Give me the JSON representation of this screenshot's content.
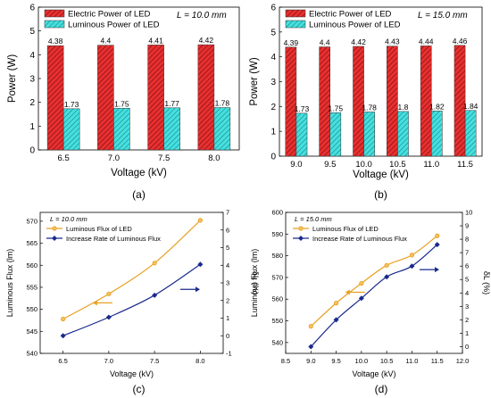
{
  "chart_data": [
    {
      "type": "bar",
      "panel_label": "(a)",
      "annotation": "L = 10.0 mm",
      "xlabel": "Voltage (kV)",
      "ylabel": "Power (W)",
      "ylim": [
        0,
        6
      ],
      "yticks": [
        "0",
        "1",
        "2",
        "3",
        "4",
        "5",
        "6"
      ],
      "categories": [
        "6.5",
        "7.0",
        "7.5",
        "8.0"
      ],
      "legend_position": "top-left",
      "series": [
        {
          "name": "Electric Power of LED",
          "color": "#e02020",
          "pattern": "hatch-red",
          "values": [
            4.38,
            4.4,
            4.41,
            4.42
          ],
          "labels": [
            "4.38",
            "4.4",
            "4.41",
            "4.42"
          ]
        },
        {
          "name": "Luminous Power of LED",
          "color": "#33d6d6",
          "pattern": "hatch-cyan",
          "values": [
            1.73,
            1.75,
            1.77,
            1.78
          ],
          "labels": [
            "1.73",
            "1.75",
            "1.77",
            "1.78"
          ]
        }
      ]
    },
    {
      "type": "bar",
      "panel_label": "(b)",
      "annotation": "L = 15.0 mm",
      "xlabel": "Voltage (kV)",
      "ylabel": "Power (W)",
      "ylim": [
        0,
        6
      ],
      "yticks": [
        "0",
        "1",
        "2",
        "3",
        "4",
        "5",
        "6"
      ],
      "categories": [
        "9.0",
        "9.5",
        "10.0",
        "10.5",
        "11.0",
        "11.5"
      ],
      "legend_position": "top-left",
      "series": [
        {
          "name": "Electric Power of LED",
          "color": "#e02020",
          "pattern": "hatch-red",
          "values": [
            4.39,
            4.4,
            4.42,
            4.43,
            4.44,
            4.46
          ],
          "labels": [
            "4.39",
            "4.4",
            "4.42",
            "4.43",
            "4.44",
            "4.46"
          ]
        },
        {
          "name": "Luminous Power of LED",
          "color": "#33d6d6",
          "pattern": "hatch-cyan",
          "values": [
            1.73,
            1.75,
            1.78,
            1.8,
            1.82,
            1.84
          ],
          "labels": [
            "1.73",
            "1.75",
            "1.78",
            "1.8",
            "1.82",
            "1.84"
          ]
        }
      ]
    },
    {
      "type": "line",
      "panel_label": "(c)",
      "annotation": "L = 10.0 mm",
      "xlabel": "Voltage (kV)",
      "ylabel": "Luminous Flux (lm)",
      "y2label": "δL (%)",
      "xlim": [
        6.25,
        8.25
      ],
      "xticks": [
        "6.5",
        "7.0",
        "7.5",
        "8.0"
      ],
      "ylim": [
        540,
        572
      ],
      "yticks": [
        "540",
        "545",
        "550",
        "555",
        "560",
        "565",
        "570"
      ],
      "y2lim": [
        -1,
        7
      ],
      "y2ticks": [
        "-1",
        "0",
        "1",
        "2",
        "3",
        "4",
        "5",
        "6",
        "7"
      ],
      "legend_position": "top-left",
      "series": [
        {
          "name": "Luminous Flux of LED",
          "axis": "left",
          "color": "#e8a020",
          "marker": "circle",
          "x": [
            6.5,
            7.0,
            7.5,
            8.0
          ],
          "values": [
            547.8,
            553.5,
            560.5,
            570.2
          ]
        },
        {
          "name": "Increase Rate of Luminous Flux",
          "axis": "right",
          "color": "#1a2a8c",
          "marker": "diamond",
          "x": [
            6.5,
            7.0,
            7.5,
            8.0
          ],
          "values": [
            0,
            1.05,
            2.3,
            4.05
          ]
        }
      ]
    },
    {
      "type": "line",
      "panel_label": "(d)",
      "annotation": "L = 15.0 mm",
      "xlabel": "Voltage (kV)",
      "ylabel": "Luminous Flux (lm)",
      "y2label": "δL (%)",
      "xlim": [
        8.5,
        12.0
      ],
      "xticks": [
        "8.5",
        "9.0",
        "9.5",
        "10.0",
        "10.5",
        "11.0",
        "11.5",
        "12.0"
      ],
      "ylim": [
        535,
        600
      ],
      "yticks": [
        "540",
        "550",
        "560",
        "570",
        "580",
        "590",
        "600"
      ],
      "y2lim": [
        -0.5,
        10
      ],
      "y2ticks": [
        "0",
        "1",
        "2",
        "3",
        "4",
        "5",
        "6",
        "7",
        "8",
        "9",
        "10"
      ],
      "legend_position": "top-left",
      "series": [
        {
          "name": "Luminous Flux of LED",
          "axis": "left",
          "color": "#e8a020",
          "marker": "circle",
          "x": [
            9.0,
            9.5,
            10.0,
            10.5,
            11.0,
            11.5
          ],
          "values": [
            547.5,
            558.2,
            567.3,
            575.6,
            580.3,
            589.2
          ]
        },
        {
          "name": "Increase Rate of Luminous Flux",
          "axis": "right",
          "color": "#1a2a8c",
          "marker": "diamond",
          "x": [
            9.0,
            9.5,
            10.0,
            10.5,
            11.0,
            11.5
          ],
          "values": [
            0,
            2.0,
            3.6,
            5.2,
            6.0,
            7.6
          ]
        }
      ]
    }
  ]
}
